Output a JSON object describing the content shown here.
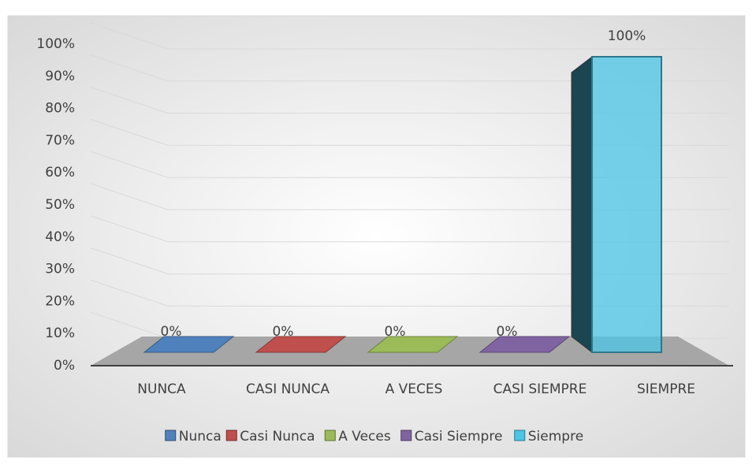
{
  "chart_data": {
    "type": "bar3d",
    "categories": [
      "NUNCA",
      "CASI NUNCA",
      "A VECES",
      "CASI SIEMPRE",
      "SIEMPRE"
    ],
    "series": [
      {
        "name": "Nunca",
        "color": "#4f81bd",
        "values": [
          0,
          null,
          null,
          null,
          null
        ],
        "value_labels": [
          "0%",
          null,
          null,
          null,
          null
        ]
      },
      {
        "name": "Casi Nunca",
        "color": "#c0504d",
        "values": [
          null,
          0,
          null,
          null,
          null
        ],
        "value_labels": [
          null,
          "0%",
          null,
          null,
          null
        ]
      },
      {
        "name": "A Veces",
        "color": "#9bbb59",
        "values": [
          null,
          null,
          0,
          null,
          null
        ],
        "value_labels": [
          null,
          null,
          "0%",
          null,
          null
        ]
      },
      {
        "name": "Casi Siempre",
        "color": "#8064a2",
        "values": [
          null,
          null,
          null,
          0,
          null
        ],
        "value_labels": [
          null,
          null,
          null,
          "0%",
          null
        ]
      },
      {
        "name": "Siempre",
        "color": "#4bc6e6",
        "values": [
          null,
          null,
          null,
          null,
          100
        ],
        "value_labels": [
          null,
          null,
          null,
          null,
          "100%"
        ]
      }
    ],
    "ylim": [
      0,
      100
    ],
    "yticks": [
      {
        "value": 0,
        "label": "0%"
      },
      {
        "value": 10,
        "label": "10%"
      },
      {
        "value": 20,
        "label": "20%"
      },
      {
        "value": 30,
        "label": "30%"
      },
      {
        "value": 40,
        "label": "40%"
      },
      {
        "value": 50,
        "label": "50%"
      },
      {
        "value": 60,
        "label": "60%"
      },
      {
        "value": 70,
        "label": "70%"
      },
      {
        "value": 80,
        "label": "80%"
      },
      {
        "value": 90,
        "label": "90%"
      },
      {
        "value": 100,
        "label": "100%"
      }
    ],
    "grid": true,
    "legend": "bottom"
  }
}
